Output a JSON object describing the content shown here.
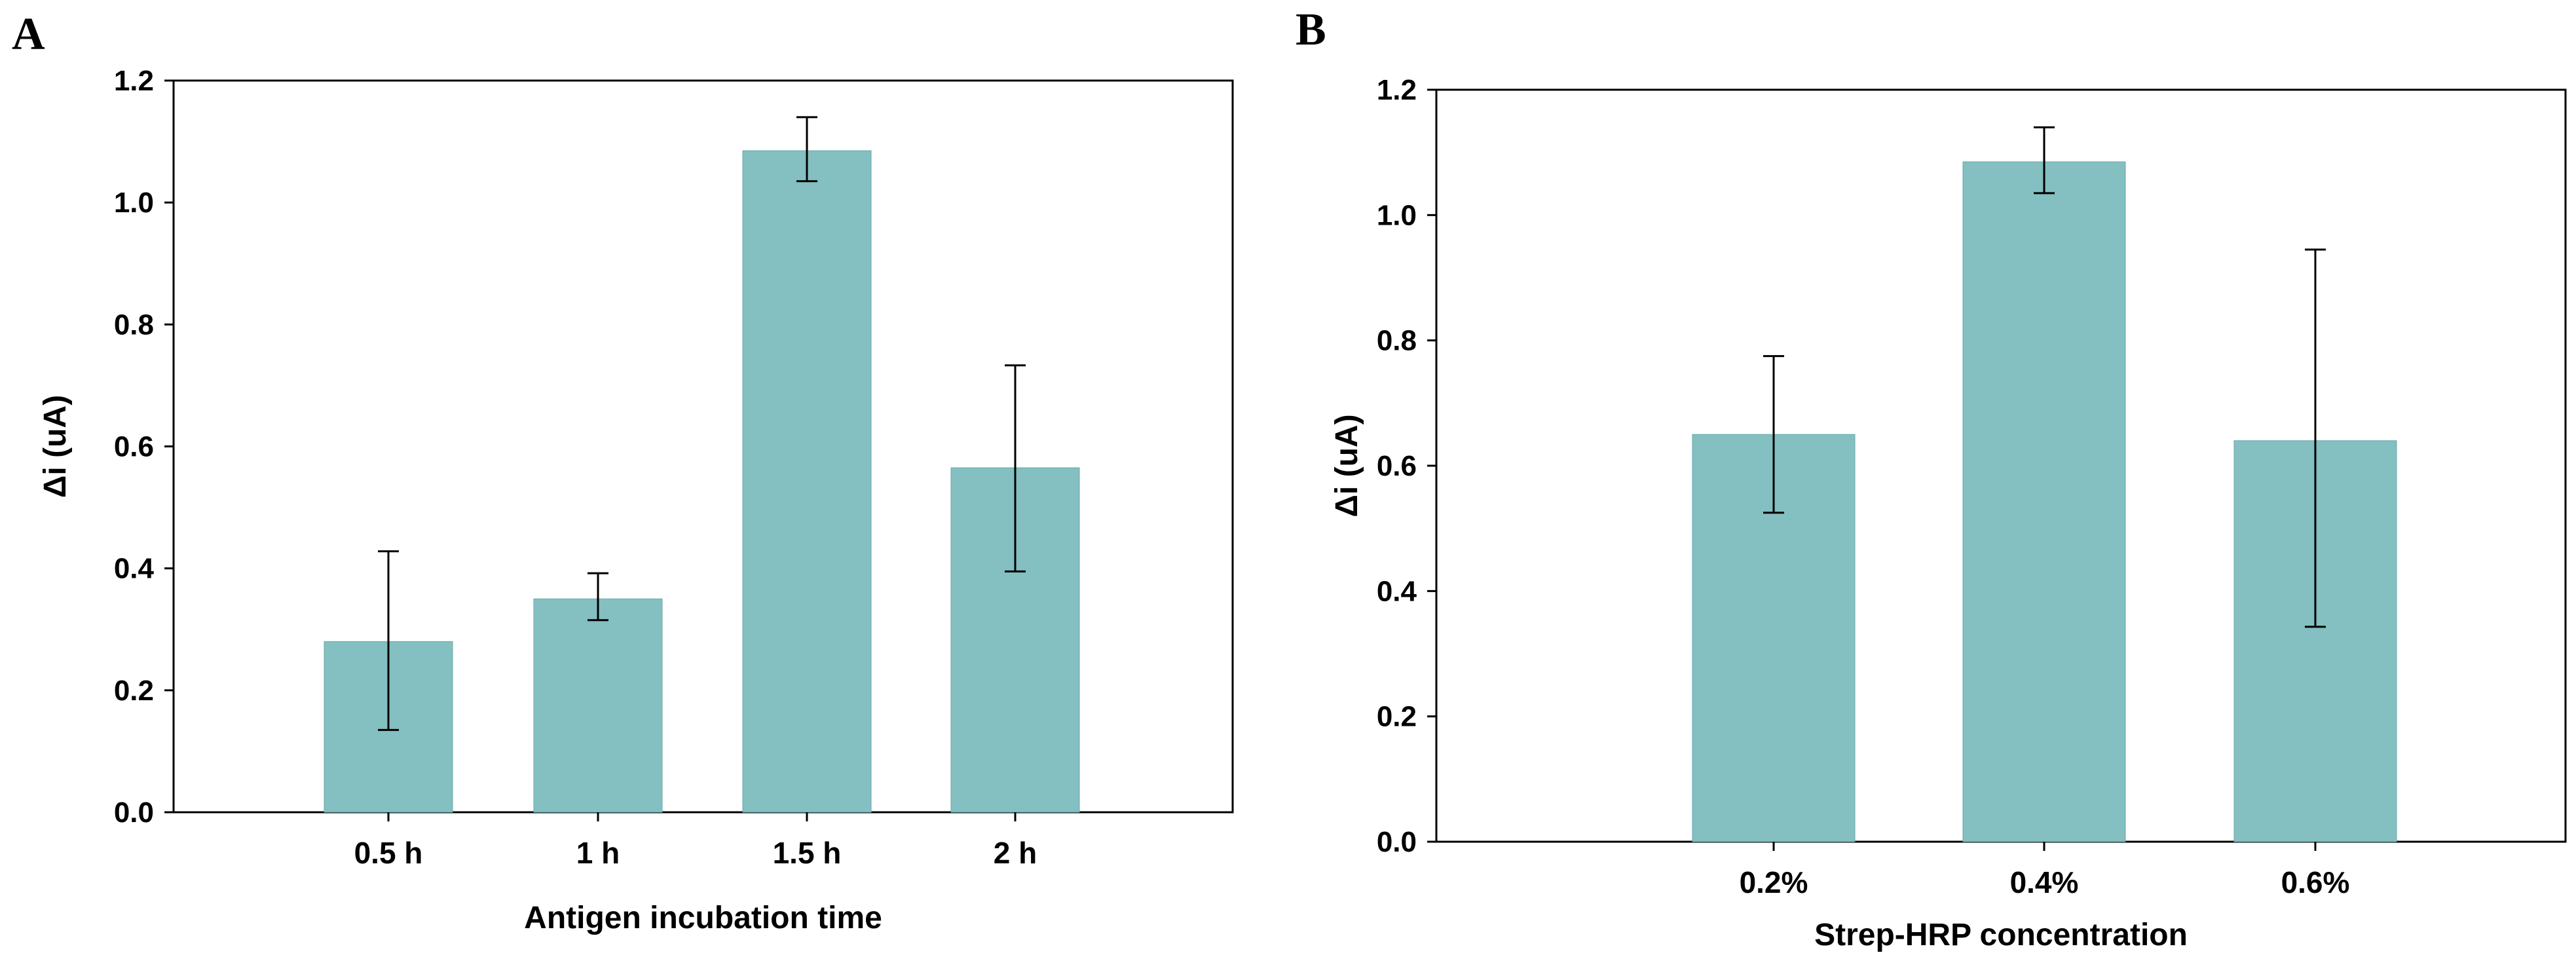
{
  "chart_data": [
    {
      "type": "bar",
      "panel_label": "A",
      "title": "",
      "categories": [
        "0.5 h",
        "1 h",
        "1.5 h",
        "2 h"
      ],
      "values": [
        0.28,
        0.35,
        1.085,
        0.565
      ],
      "errors_low": [
        0.135,
        0.315,
        1.035,
        0.395
      ],
      "errors_high": [
        0.428,
        0.392,
        1.14,
        0.733
      ],
      "xlabel": "Antigen incubation time",
      "ylabel": "Δi (uA)",
      "ylim": [
        0,
        1.2
      ],
      "yticks": [
        "0.0",
        "0.2",
        "0.4",
        "0.6",
        "0.8",
        "1.0",
        "1.2"
      ],
      "bar_color": "#84bfc1",
      "grid": false
    },
    {
      "type": "bar",
      "panel_label": "B",
      "title": "",
      "categories": [
        "0.2%",
        "0.4%",
        "0.6%"
      ],
      "values": [
        0.65,
        1.085,
        0.64
      ],
      "errors_low": [
        0.525,
        1.035,
        0.343
      ],
      "errors_high": [
        0.775,
        1.14,
        0.945
      ],
      "xlabel": "Strep-HRP concentration",
      "ylabel": "Δi (uA)",
      "ylim": [
        0,
        1.2
      ],
      "yticks": [
        "0.0",
        "0.2",
        "0.4",
        "0.6",
        "0.8",
        "1.0",
        "1.2"
      ],
      "bar_color": "#84bfc1",
      "grid": false
    }
  ]
}
